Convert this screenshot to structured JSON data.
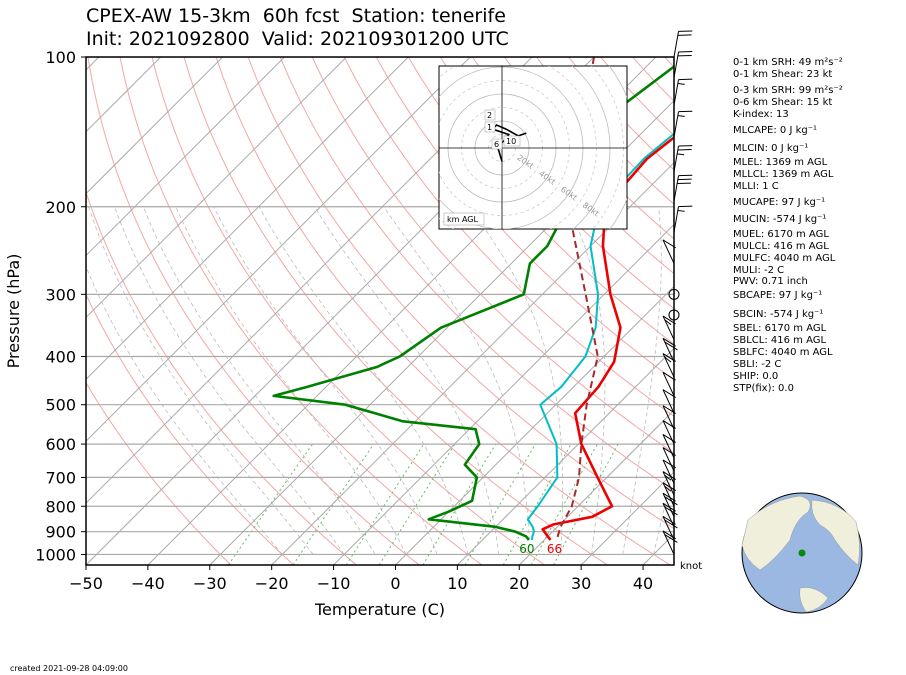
{
  "header": {
    "title_line1": "CPEX-AW 15-3km  60h fcst  Station: tenerife",
    "title_line2": "Init: 2021092800  Valid: 202109301200 UTC"
  },
  "footer": {
    "created": "created 2021-09-28 04:09:00"
  },
  "indices": [
    {
      "label": "0-1 km SRH: 49 m²s⁻²"
    },
    {
      "label": "0-1 km Shear: 23 kt"
    },
    {
      "label": "0-3 km SRH: 99 m²s⁻²"
    },
    {
      "label": "0-6 km Shear: 15 kt"
    },
    {
      "label": "K-index: 13"
    },
    {
      "label": "MLCAPE: 0 J kg⁻¹"
    },
    {
      "label": "MLCIN: 0 J kg⁻¹"
    },
    {
      "label": "MLEL: 1369 m AGL"
    },
    {
      "label": "MLLCL: 1369 m AGL"
    },
    {
      "label": "MLLI: 1 C"
    },
    {
      "label": "MUCAPE: 97 J kg⁻¹"
    },
    {
      "label": "MUCIN: -574 J kg⁻¹"
    },
    {
      "label": "MUEL: 6170 m AGL"
    },
    {
      "label": "MULCL: 416 m AGL"
    },
    {
      "label": "MULFC: 4040 m AGL"
    },
    {
      "label": "MULI: -2 C"
    },
    {
      "label": "PWV: 0.71 inch"
    },
    {
      "label": "SBCAPE: 97 J kg⁻¹"
    },
    {
      "label": "SBCIN: -574 J kg⁻¹"
    },
    {
      "label": "SBEL: 6170 m AGL"
    },
    {
      "label": "SBLCL: 416 m AGL"
    },
    {
      "label": "SBLFC: 4040 m AGL"
    },
    {
      "label": "SBLI: -2 C"
    },
    {
      "label": "SHIP: 0.0"
    },
    {
      "label": "STP(fix): 0.0"
    }
  ],
  "chart_data": {
    "type": "line",
    "subtype": "skew-T log-P",
    "xlabel": "Temperature (C)",
    "ylabel": "Pressure (hPa)",
    "xlim": [
      -50,
      45
    ],
    "ylim": [
      1050,
      100
    ],
    "yscale": "log",
    "x_ticks": [
      -50,
      -40,
      -30,
      -20,
      -10,
      0,
      10,
      20,
      30,
      40
    ],
    "y_ticks": [
      100,
      200,
      300,
      400,
      500,
      600,
      700,
      800,
      900,
      1000
    ],
    "grid": true,
    "colors": {
      "temperature": "#ee0000",
      "dewpoint": "#008000",
      "wetbulb": "#00bfc4",
      "parcel": "#a52a2a",
      "isotherm": "#aaaaaa",
      "dry_adiabat": "#f4a6a6",
      "mixing_ratio": "#66bb66"
    },
    "surface_labels": {
      "temperature": "66",
      "dewpoint": "60"
    },
    "series": [
      {
        "key": "temperature",
        "values": [
          [
            100,
            -21.5
          ],
          [
            130,
            -23
          ],
          [
            160,
            -25
          ],
          [
            200,
            -24
          ],
          [
            240,
            -18
          ],
          [
            300,
            -9
          ],
          [
            350,
            -2
          ],
          [
            410,
            2.5
          ],
          [
            460,
            4
          ],
          [
            520,
            4.5
          ],
          [
            600,
            10.5
          ],
          [
            700,
            18.5
          ],
          [
            800,
            25.5
          ],
          [
            840,
            24
          ],
          [
            870,
            19
          ],
          [
            890,
            18
          ],
          [
            920,
            20
          ],
          [
            935,
            21
          ]
        ]
      },
      {
        "key": "wetbulb",
        "values": [
          [
            100,
            -22
          ],
          [
            130,
            -24
          ],
          [
            160,
            -25.5
          ],
          [
            200,
            -25
          ],
          [
            240,
            -20
          ],
          [
            300,
            -11
          ],
          [
            350,
            -6
          ],
          [
            400,
            -3
          ],
          [
            460,
            -2
          ],
          [
            500,
            -2.5
          ],
          [
            600,
            6.5
          ],
          [
            700,
            12
          ],
          [
            800,
            13.5
          ],
          [
            850,
            14
          ],
          [
            880,
            16
          ],
          [
            900,
            17
          ],
          [
            920,
            17.5
          ],
          [
            935,
            18
          ]
        ]
      },
      {
        "key": "dewpoint",
        "values": [
          [
            100,
            -35
          ],
          [
            130,
            -38
          ],
          [
            160,
            -38
          ],
          [
            180,
            -34
          ],
          [
            200,
            -30
          ],
          [
            240,
            -27
          ],
          [
            260,
            -27
          ],
          [
            300,
            -23
          ],
          [
            350,
            -31
          ],
          [
            400,
            -33
          ],
          [
            420,
            -35
          ],
          [
            460,
            -43
          ],
          [
            480,
            -47
          ],
          [
            500,
            -34
          ],
          [
            540,
            -22
          ],
          [
            560,
            -9
          ],
          [
            600,
            -6
          ],
          [
            660,
            -5
          ],
          [
            700,
            -1
          ],
          [
            780,
            2
          ],
          [
            820,
            0
          ],
          [
            850,
            -2
          ],
          [
            880,
            10
          ],
          [
            900,
            14
          ],
          [
            920,
            16.5
          ],
          [
            935,
            17.5
          ]
        ]
      },
      {
        "key": "parcel",
        "values": [
          [
            100,
            -50
          ],
          [
            200,
            -30
          ],
          [
            300,
            -13
          ],
          [
            400,
            -1
          ],
          [
            500,
            5
          ],
          [
            600,
            10.5
          ],
          [
            700,
            15.5
          ],
          [
            800,
            19
          ],
          [
            880,
            20.5
          ],
          [
            935,
            22
          ]
        ]
      }
    ],
    "wind_barbs": [
      {
        "pressure": 100,
        "speed_kt": 20
      },
      {
        "pressure": 110,
        "speed_kt": 20
      },
      {
        "pressure": 125,
        "speed_kt": 15
      },
      {
        "pressure": 145,
        "speed_kt": 15
      },
      {
        "pressure": 170,
        "speed_kt": 25
      },
      {
        "pressure": 195,
        "speed_kt": 30
      },
      {
        "pressure": 225,
        "speed_kt": 15
      },
      {
        "pressure": 260,
        "speed_kt": 10
      },
      {
        "pressure": 300,
        "speed_kt": 0
      },
      {
        "pressure": 330,
        "speed_kt": 0
      },
      {
        "pressure": 370,
        "speed_kt": 15
      },
      {
        "pressure": 410,
        "speed_kt": 20
      },
      {
        "pressure": 440,
        "speed_kt": 15
      },
      {
        "pressure": 480,
        "speed_kt": 10
      },
      {
        "pressure": 520,
        "speed_kt": 10
      },
      {
        "pressure": 560,
        "speed_kt": 10
      },
      {
        "pressure": 600,
        "speed_kt": 10
      },
      {
        "pressure": 640,
        "speed_kt": 10
      },
      {
        "pressure": 680,
        "speed_kt": 10
      },
      {
        "pressure": 720,
        "speed_kt": 10
      },
      {
        "pressure": 760,
        "speed_kt": 15
      },
      {
        "pressure": 800,
        "speed_kt": 15
      },
      {
        "pressure": 840,
        "speed_kt": 20
      },
      {
        "pressure": 880,
        "speed_kt": 20
      },
      {
        "pressure": 935,
        "speed_kt": 20
      },
      {
        "pressure": 1000,
        "speed_kt": 20
      }
    ],
    "wind_unit_label": "knot",
    "hodograph": {
      "ring_labels": [
        "20kt",
        "40kt",
        "60kt",
        "80kt"
      ],
      "height_labels": [
        "2",
        "1",
        "6",
        "10"
      ],
      "unit_label": "km AGL",
      "points": [
        [
          0,
          -10
        ],
        [
          -3,
          0
        ],
        [
          -1,
          3
        ],
        [
          2,
          6
        ],
        [
          5,
          10
        ],
        [
          -7,
          14
        ],
        [
          -4,
          17
        ],
        [
          3,
          14
        ],
        [
          12,
          9
        ],
        [
          18,
          11
        ]
      ]
    }
  }
}
